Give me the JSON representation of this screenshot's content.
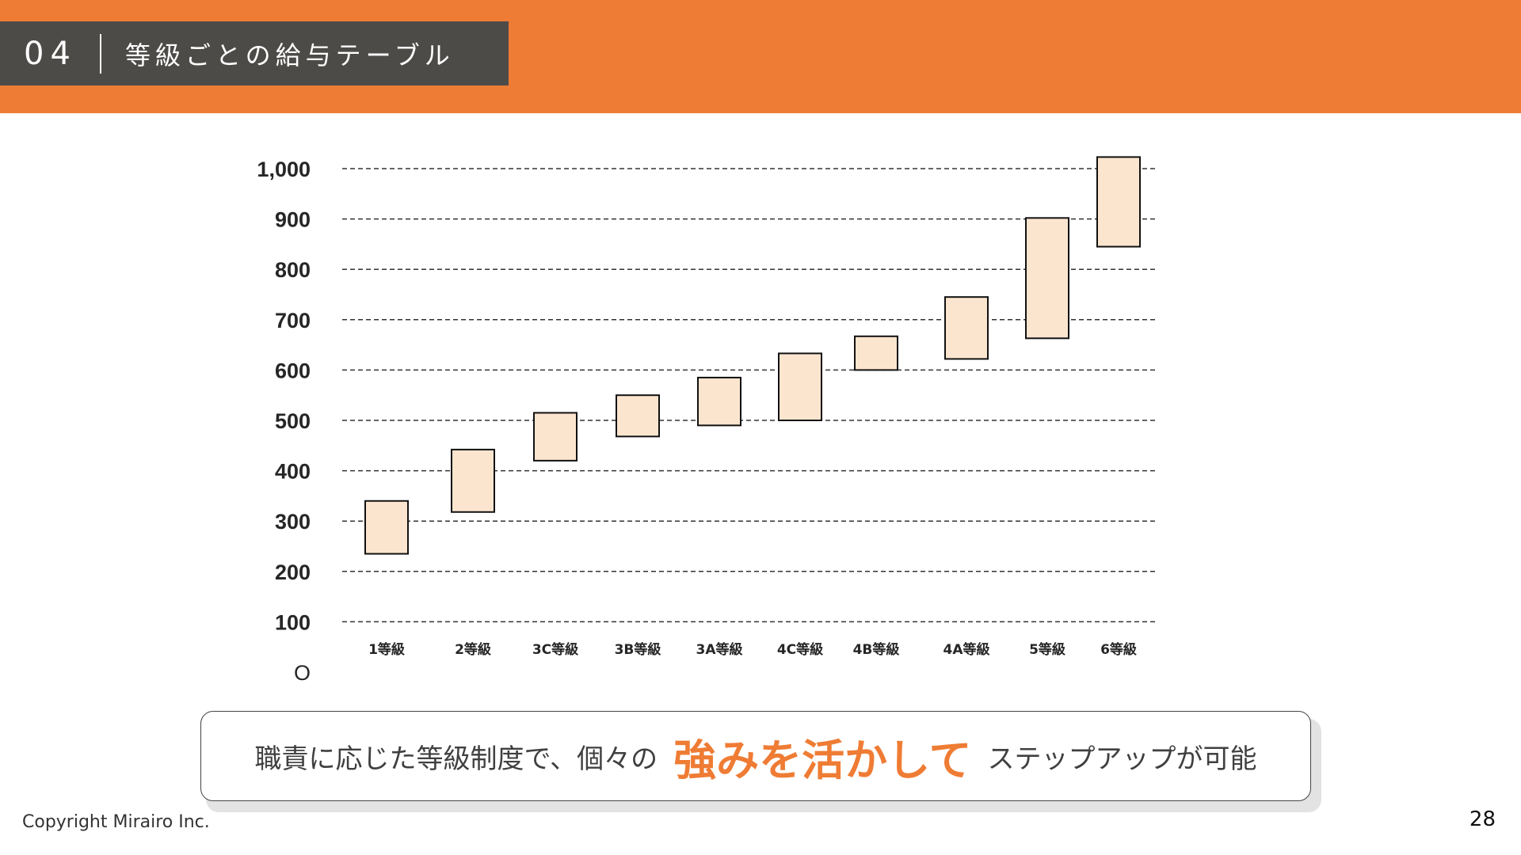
{
  "header": {
    "section_number": "04",
    "title": "等級ごとの給与テーブル"
  },
  "colors": {
    "accent": "#EF7C34",
    "title_box": "#4D4B48",
    "bar_fill": "#FCE5CF",
    "bar_stroke": "#111111"
  },
  "chart_data": {
    "type": "bar",
    "subtype": "floating-range",
    "categories": [
      "1等級",
      "2等級",
      "3C等級",
      "3B等級",
      "3A等級",
      "4C等級",
      "4B等級",
      "4A等級",
      "5等級",
      "6等級"
    ],
    "ranges": [
      [
        235,
        340
      ],
      [
        318,
        442
      ],
      [
        420,
        515
      ],
      [
        468,
        550
      ],
      [
        490,
        585
      ],
      [
        500,
        633
      ],
      [
        600,
        667
      ],
      [
        622,
        745
      ],
      [
        663,
        902
      ],
      [
        845,
        1023
      ]
    ],
    "y_tick_labels": [
      "O",
      "100",
      "200",
      "300",
      "400",
      "500",
      "600",
      "700",
      "800",
      "900",
      "1,000"
    ],
    "ylim": [
      0,
      1000
    ],
    "grid": true,
    "legend": false
  },
  "summary": {
    "before": "職責に応じた等級制度で、個々の",
    "highlight": "強みを活かして",
    "after": "ステップアップが可能"
  },
  "footer": {
    "copyright": "Copyright Mirairo Inc.",
    "page_number": "28"
  }
}
